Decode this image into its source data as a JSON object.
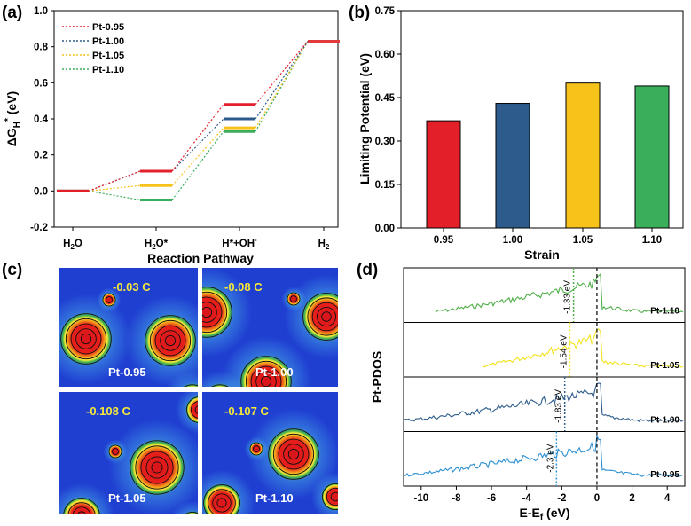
{
  "panels": {
    "a": "(a)",
    "b": "(b)",
    "c": "(c)",
    "d": "(d)"
  },
  "colors": {
    "Pt-0.95": "#e3202a",
    "Pt-1.00": "#2d5c8c",
    "Pt-1.05": "#f7c31a",
    "Pt-1.10": "#3aae5a",
    "Pt-0.95-pdos": "#2b8fd1",
    "Pt-1.05-pdos": "#f2e31c",
    "Pt-1.10-pdos": "#4fae48",
    "terminal": "#e03a3a"
  },
  "chart_data": [
    {
      "panel": "a",
      "type": "line",
      "xlabel": "Reaction Pathway",
      "ylabel": "ΔG_H* (eV)",
      "categories": [
        "H2O",
        "H2O*",
        "H*+OH-",
        "H2"
      ],
      "ylim": [
        -0.2,
        1.0
      ],
      "yticks": [
        "-0.2",
        "0.0",
        "0.2",
        "0.4",
        "0.6",
        "0.8",
        "1.0"
      ],
      "legend_position": "top-left",
      "series": [
        {
          "name": "Pt-0.95",
          "values": [
            0.0,
            0.11,
            0.48,
            0.83
          ]
        },
        {
          "name": "Pt-1.00",
          "values": [
            0.0,
            0.11,
            0.4,
            0.83
          ]
        },
        {
          "name": "Pt-1.05",
          "values": [
            0.0,
            0.03,
            0.35,
            0.83
          ]
        },
        {
          "name": "Pt-1.10",
          "values": [
            0.0,
            -0.05,
            0.33,
            0.83
          ]
        }
      ]
    },
    {
      "panel": "b",
      "type": "bar",
      "xlabel": "Strain",
      "ylabel": "Limiting Potential (eV)",
      "categories": [
        "0.95",
        "1.00",
        "1.05",
        "1.10"
      ],
      "values": [
        0.37,
        0.43,
        0.5,
        0.49
      ],
      "ylim": [
        0.0,
        0.75
      ],
      "yticks": [
        "0.00",
        "0.15",
        "0.30",
        "0.45",
        "0.60",
        "0.75"
      ]
    },
    {
      "panel": "d",
      "type": "line",
      "xlabel": "E-E_f (eV)",
      "ylabel": "Pt-PDOS",
      "xlim": [
        -11,
        5
      ],
      "xticks": [
        "-10",
        "-8",
        "-6",
        "-4",
        "-2",
        "0",
        "2",
        "4"
      ],
      "series": [
        {
          "name": "Pt-1.10",
          "d_band_center": -1.33,
          "annotation": "-1.33 eV"
        },
        {
          "name": "Pt-1.05",
          "d_band_center": -1.54,
          "annotation": "-1.54 eV"
        },
        {
          "name": "Pt-1.00",
          "d_band_center": -1.83,
          "annotation": "-1.83 eV"
        },
        {
          "name": "Pt-0.95",
          "d_band_center": -2.3,
          "annotation": "-2.3 eV"
        }
      ]
    }
  ],
  "charge_maps": [
    {
      "label": "Pt-0.95",
      "charge": "-0.03 C"
    },
    {
      "label": "Pt-1.00",
      "charge": "-0.08 C"
    },
    {
      "label": "Pt-1.05",
      "charge": "-0.108 C"
    },
    {
      "label": "Pt-1.10",
      "charge": "-0.107 C"
    }
  ]
}
